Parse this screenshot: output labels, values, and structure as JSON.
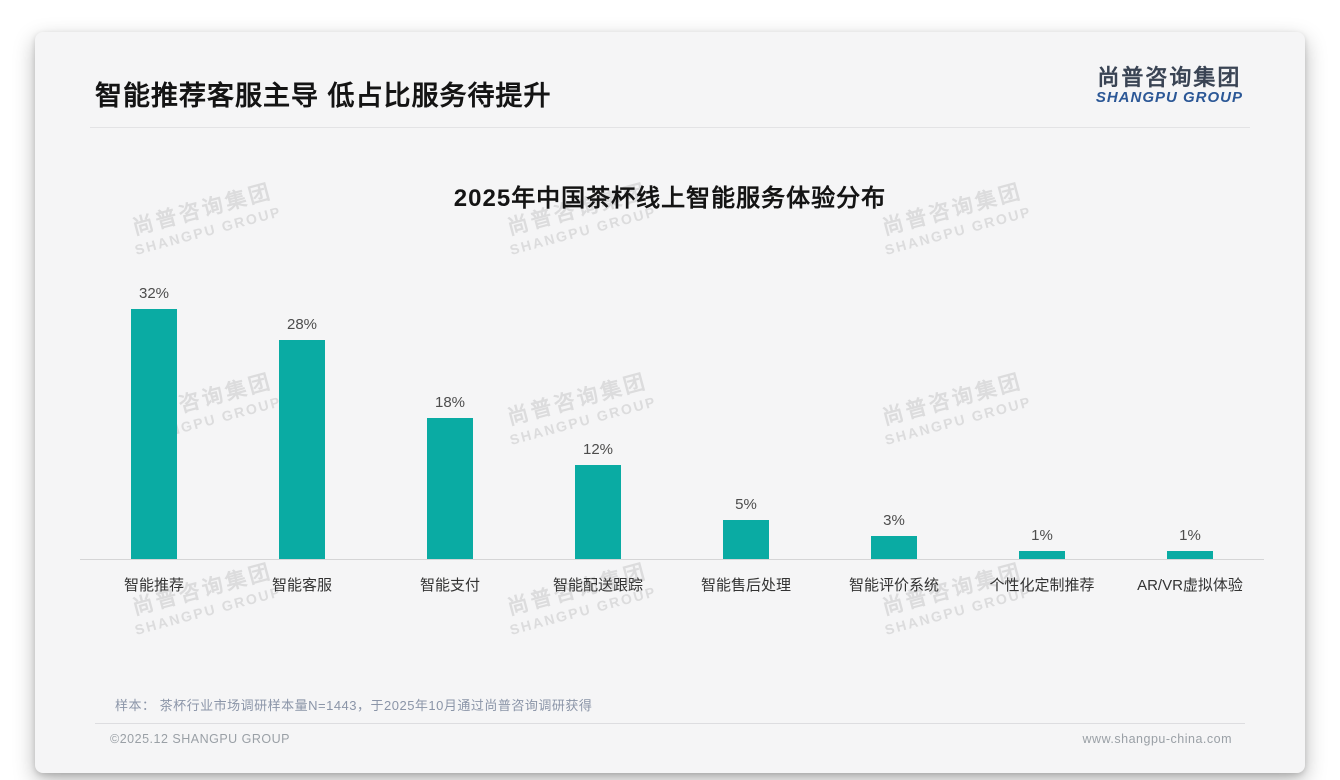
{
  "header": {
    "title": "智能推荐客服主导 低占比服务待提升",
    "logo_cn": "尚普咨询集团",
    "logo_en": "SHANGPU GROUP"
  },
  "watermark": {
    "cn": "尚普咨询集团",
    "en": "SHANGPU GROUP"
  },
  "chart_data": {
    "type": "bar",
    "title": "2025年中国茶杯线上智能服务体验分布",
    "categories": [
      "智能推荐",
      "智能客服",
      "智能支付",
      "智能配送跟踪",
      "智能售后处理",
      "智能评价系统",
      "个性化定制推荐",
      "AR/VR虚拟体验"
    ],
    "values": [
      32,
      28,
      18,
      12,
      5,
      3,
      1,
      1
    ],
    "value_labels": [
      "32%",
      "28%",
      "18%",
      "12%",
      "5%",
      "3%",
      "1%",
      "1%"
    ],
    "ylim": [
      0,
      32
    ],
    "bar_color": "#0aaba3",
    "grid": false,
    "legend": false,
    "xlabel": "",
    "ylabel": ""
  },
  "note": "样本： 茶杯行业市场调研样本量N=1443，于2025年10月通过尚普咨询调研获得",
  "footer": {
    "left": "©2025.12 SHANGPU GROUP",
    "right": "www.shangpu-china.com"
  },
  "colors": {
    "bar_teal": "#0aaba3",
    "logo_blue": "#2b5796",
    "card_bg": "#f5f5f6",
    "note_gray": "#8b95a8"
  }
}
